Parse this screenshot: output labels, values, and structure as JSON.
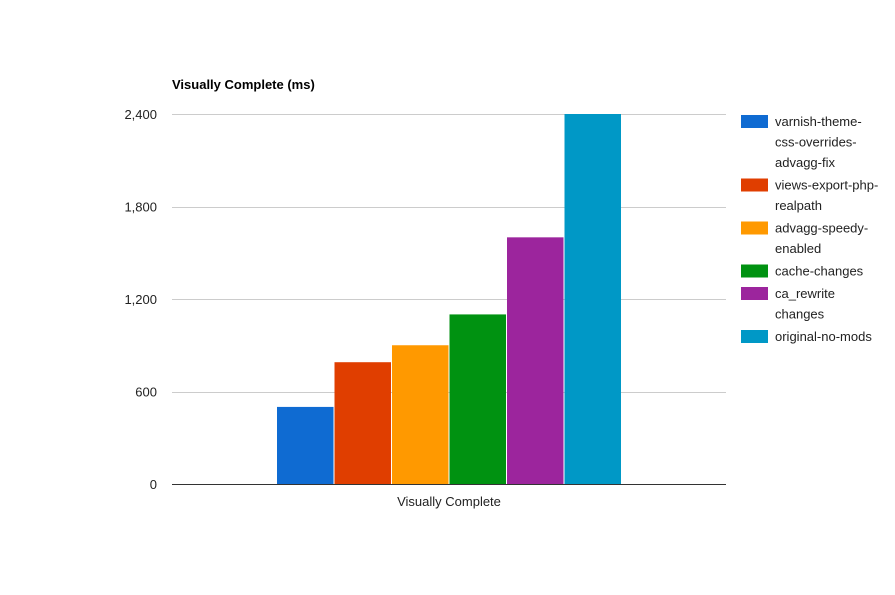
{
  "chart_data": {
    "type": "bar",
    "title": "Visually Complete (ms)",
    "categories": [
      "Visually Complete"
    ],
    "xlabel": "",
    "ylabel": "",
    "ylim": [
      0,
      2400
    ],
    "yticks": [
      0,
      600,
      1200,
      1800,
      2400
    ],
    "ytick_labels": [
      "0",
      "600",
      "1,200",
      "1,800",
      "2,400"
    ],
    "grid": true,
    "legend_position": "right",
    "series": [
      {
        "name": "varnish-theme-css-overrides-advagg-fix",
        "legend_lines": [
          "varnish-theme-",
          "css-overrides-",
          "advagg-fix"
        ],
        "color": "#0F6BD2",
        "values": [
          500
        ]
      },
      {
        "name": "views-export-php-realpath",
        "legend_lines": [
          "views-export-php-",
          "realpath"
        ],
        "color": "#E03E00",
        "values": [
          790
        ]
      },
      {
        "name": "advagg-speedy-enabled",
        "legend_lines": [
          "advagg-speedy-",
          "enabled"
        ],
        "color": "#FF9900",
        "values": [
          900
        ]
      },
      {
        "name": "cache-changes",
        "legend_lines": [
          "cache-changes"
        ],
        "color": "#009211",
        "values": [
          1100
        ]
      },
      {
        "name": "ca_rewrite changes",
        "legend_lines": [
          "ca_rewrite",
          "changes"
        ],
        "color": "#9C259D",
        "values": [
          1600
        ]
      },
      {
        "name": "original-no-mods",
        "legend_lines": [
          "original-no-mods"
        ],
        "color": "#0098C6",
        "values": [
          2400
        ]
      }
    ]
  }
}
